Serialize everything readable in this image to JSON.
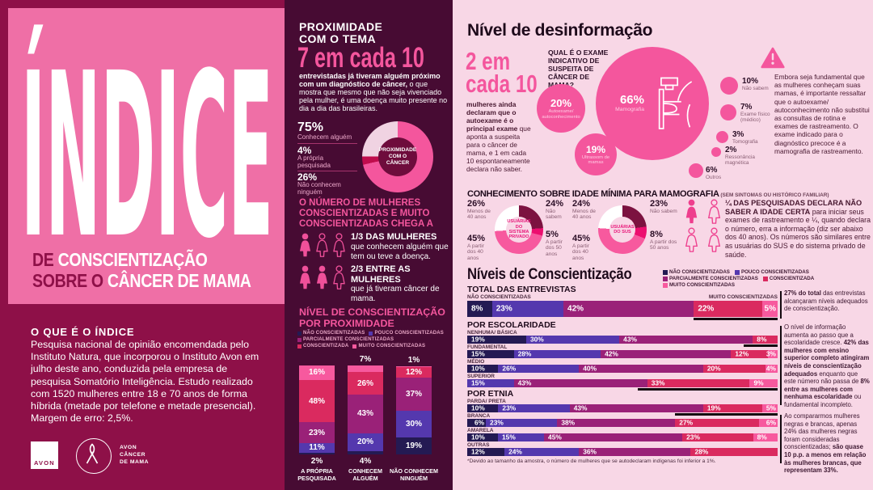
{
  "palette": {
    "left_bg": "#8E1048",
    "pink_box": "#EF6FA6",
    "mid_bg": "#470B33",
    "right_bg": "#F8D7E6",
    "accent_pink": "#F4569D",
    "navy": "#241A53",
    "purple": "#5438AE",
    "magenta": "#9A2178",
    "crimson": "#DA2A5F",
    "pink": "#F7599E",
    "pale_pink": "#F0D3E2",
    "deep_red": "#C00D4D",
    "donut_hole": "#6E0C3C",
    "slice_maroon": "#7C1240",
    "slice_magenta": "#EC0E6F",
    "marker_black": "#140A10"
  },
  "left": {
    "title": "ÍNDICE",
    "subtitle_line1_dark": "DE ",
    "subtitle_line1_white": "CONSCIENTIZAÇÃO",
    "subtitle_line2_dark": "SOBRE O ",
    "subtitle_line2_white": "CÂNCER DE MAMA",
    "about_heading": "O QUE É O ÍNDICE",
    "about_text": "Pesquisa nacional de opinião encomendada pelo Instituto Natura, que incorporou o Instituto Avon em julho deste ano, conduzida pela empresa de pesquisa Somatório Inteligência. Estudo realizado com 1520 mulheres entre 18 e 70 anos de forma híbrida (metade por telefone e metade presencial). Margem de erro: 2,5%.",
    "logo_avon": "AVON",
    "logo_ribbon_text": "AVON\nCÂNCER\nDE MAMA"
  },
  "middle": {
    "heading": "PROXIMIDADE\nCOM O TEMA",
    "big_number": "7 em cada 10",
    "lead": [
      {
        "t": "entrevistadas já tiveram alguém próximo com um diagnóstico de câncer,",
        "b": true
      },
      {
        "t": " o que mostra que mesmo que não seja vivenciado pela mulher, é uma doença muito presente no dia a dia das brasileiras.",
        "b": false
      }
    ],
    "women_heading": "O NÚMERO DE MULHERES CONSCIENTIZADAS E MUITO CONSCIENTIZADAS CHEGA A",
    "rows": [
      {
        "title": "1/3 DAS MULHERES",
        "text": "que conhecem alguém que tem ou teve a doença.",
        "icons": {
          "filled": 1,
          "total": 3
        }
      },
      {
        "title": "2/3 ENTRE AS MULHERES",
        "text": "que já tiveram câncer de mama.",
        "icons": {
          "filled": 2,
          "total": 3
        }
      }
    ],
    "chart_heading": "NÍVEL DE CONSCIENTIZAÇÃO POR PROXIMIDADE"
  },
  "right": {
    "heading": "Nível de desinformação",
    "big_number": "2 em\ncada 10",
    "intro": [
      {
        "t": "mulheres ainda declaram que o autoexame é o principal exame",
        "b": true
      },
      {
        "t": " que aponta a suspeita para o câncer de mama, e 1 em cada 10 espontaneamente declara não saber.",
        "b": false
      }
    ],
    "warning_text": "Embora seja fundamental que as mulheres conheçam suas mamas, é importante ressaltar que o autoexame/ autoconhecimento não substitui as consultas de rotina e exames de rastreamento. O exame indicado para o diagnóstico precoce é a mamografia de rastreamento.",
    "mammo_heading": "CONHECIMENTO SOBRE IDADE MÍNIMA PARA MAMOGRAFIA",
    "mammo_heading_suffix": " (SEM SINTOMAS OU HISTÓRICO FAMILIAR)",
    "quarter": {
      "icons": {
        "filled": 1,
        "total": 4
      },
      "text": [
        {
          "t": "¼ DAS PESQUISADAS DECLARA NÃO SABER A IDADE CERTA",
          "b": true
        },
        {
          "t": " para iniciar seus exames de rastreamento e ¼, quando declara o número, erra a informação (diz ser abaixo dos 40 anos). Os números são similares entre as usuárias do SUS e do sistema privado de saúde.",
          "b": false
        }
      ]
    }
  },
  "chart_data": [
    {
      "id": "proximity-donut",
      "type": "pie",
      "title": "PROXIMIDADE COM O CÂNCER",
      "slices": [
        {
          "label": "Conhecem alguém",
          "pct": "75%",
          "value": 75,
          "color": "#F4569D"
        },
        {
          "label": "A própria pesquisada",
          "pct": "4%",
          "value": 4,
          "color": "#C00D4D"
        },
        {
          "label": "Não conhecem ninguém",
          "pct": "26%",
          "value": 26,
          "color": "#F0D3E2"
        }
      ]
    },
    {
      "id": "awareness-by-proximity",
      "type": "bar",
      "stacked": true,
      "unit": "%",
      "title": "NÍVEL DE CONSCIENTIZAÇÃO POR PROXIMIDADE",
      "categories": [
        "A PRÓPRIA\nPESQUISADA",
        "CONHECEM\nALGUÉM",
        "NÃO CONHECEM\nNINGUÉM"
      ],
      "series": [
        {
          "name": "NÃO CONSCIENTIZADAS",
          "color": "#241A53",
          "values": [
            2,
            4,
            19
          ]
        },
        {
          "name": "POUCO CONSCIENTIZADAS",
          "color": "#5438AE",
          "values": [
            11,
            20,
            30
          ]
        },
        {
          "name": "PARCIALMENTE CONSCIENTIZADAS",
          "color": "#9A2178",
          "values": [
            23,
            43,
            37
          ]
        },
        {
          "name": "CONSCIENTIZADA",
          "color": "#DA2A5F",
          "values": [
            48,
            26,
            12
          ]
        },
        {
          "name": "MUITO CONSCIENTIZADAS",
          "color": "#F7599E",
          "values": [
            16,
            7,
            1
          ]
        }
      ]
    },
    {
      "id": "exam-bubbles",
      "type": "bubble",
      "question": "QUAL É O EXAME INDICATIVO DE SUSPEITA DE CÂNCER DE MAMA?",
      "items": [
        {
          "label": "Mamografia",
          "pct": "66%",
          "value": 66
        },
        {
          "label": "Autoexame/ autoconhecimento",
          "pct": "20%",
          "value": 20
        },
        {
          "label": "Ultrassom de mamas",
          "pct": "19%",
          "value": 19
        },
        {
          "label": "Não sabem",
          "pct": "10%",
          "value": 10
        },
        {
          "label": "Exame físico (médico)",
          "pct": "7%",
          "value": 7
        },
        {
          "label": "Tomografia",
          "pct": "3%",
          "value": 3
        },
        {
          "label": "Ressonância magnética",
          "pct": "2%",
          "value": 2
        },
        {
          "label": "Outros",
          "pct": "6%",
          "value": 6
        }
      ]
    },
    {
      "id": "mammography-age-private",
      "type": "pie",
      "title": "USUÁRIAS DO SISTEMA PRIVADO",
      "slices": [
        {
          "label": "Não sabem",
          "pct": "24%",
          "value": 24,
          "color": "#7C1240"
        },
        {
          "label": "A partir dos 50 anos",
          "pct": "5%",
          "value": 5,
          "color": "#EC0E6F"
        },
        {
          "label": "A partir dos 40 anos",
          "pct": "45%",
          "value": 45,
          "color": "#F7599E"
        },
        {
          "label": "Menos de 40 anos",
          "pct": "26%",
          "value": 26,
          "color": "#FFFFFF"
        }
      ]
    },
    {
      "id": "mammography-age-sus",
      "type": "pie",
      "title": "USUÁRIAS DO SUS",
      "slices": [
        {
          "label": "Não sabem",
          "pct": "23%",
          "value": 23,
          "color": "#7C1240"
        },
        {
          "label": "A partir dos 50 anos",
          "pct": "8%",
          "value": 8,
          "color": "#EC0E6F"
        },
        {
          "label": "A partir dos 40 anos",
          "pct": "45%",
          "value": 45,
          "color": "#F7599E"
        },
        {
          "label": "Menos de 40 anos",
          "pct": "24%",
          "value": 24,
          "color": "#FFFFFF"
        }
      ]
    },
    {
      "id": "awareness-levels",
      "type": "bar",
      "stacked": true,
      "horizontal": true,
      "title": "Níveis de Conscientização",
      "colors": {
        "navy": "#241A53",
        "purple": "#5438AE",
        "magenta": "#9A2178",
        "crimson": "#DA2A5F",
        "pink": "#F7599E"
      },
      "legend": [
        "NÃO CONSCIENTIZADAS",
        "POUCO CONSCIENTIZADAS",
        "PARCIALMENTE CONSCIENTIZADAS",
        "CONSCIENTIZADA",
        "MUITO CONSCIENTIZADAS"
      ],
      "groups": [
        {
          "heading": "TOTAL DAS ENTREVISTAS",
          "rows": [
            {
              "label": "TOTAL",
              "left_label": "NÃO CONSCIENTIZADAS",
              "right_label": "MUITO CONSCIENTIZADAS",
              "big": true,
              "segments": [
                [
                  "navy",
                  8
                ],
                [
                  "purple",
                  23
                ],
                [
                  "magenta",
                  42
                ],
                [
                  "crimson",
                  22
                ],
                [
                  "pink",
                  5
                ]
              ],
              "marker": [
                73,
                100
              ]
            }
          ]
        },
        {
          "heading": "POR ESCOLARIDADE",
          "rows": [
            {
              "label": "NENHUMA/ BÁSICA",
              "segments": [
                [
                  "navy",
                  19
                ],
                [
                  "purple",
                  30
                ],
                [
                  "magenta",
                  43
                ],
                [
                  "crimson",
                  8
                ]
              ],
              "marker": [
                89,
                100
              ]
            },
            {
              "label": "FUNDAMENTAL",
              "segments": [
                [
                  "navy",
                  15
                ],
                [
                  "purple",
                  28
                ],
                [
                  "magenta",
                  42
                ],
                [
                  "crimson",
                  12
                ],
                [
                  "pink",
                  3
                ]
              ]
            },
            {
              "label": "MÉDIO",
              "segments": [
                [
                  "navy",
                  10
                ],
                [
                  "purple",
                  26
                ],
                [
                  "magenta",
                  40
                ],
                [
                  "crimson",
                  20
                ],
                [
                  "pink",
                  4
                ]
              ]
            },
            {
              "label": "SUPERIOR",
              "segments": [
                [
                  "purple",
                  15
                ],
                [
                  "magenta",
                  43
                ],
                [
                  "crimson",
                  33
                ],
                [
                  "pink",
                  9
                ]
              ],
              "marker": [
                55,
                100
              ]
            }
          ]
        },
        {
          "heading": "POR ETNIA",
          "rows": [
            {
              "label": "PARDA/ PRETA",
              "segments": [
                [
                  "navy",
                  10
                ],
                [
                  "purple",
                  23
                ],
                [
                  "magenta",
                  43
                ],
                [
                  "crimson",
                  19
                ],
                [
                  "pink",
                  5
                ]
              ],
              "marker": [
                67,
                100
              ]
            },
            {
              "label": "BRANCA",
              "segments": [
                [
                  "navy",
                  6
                ],
                [
                  "purple",
                  23
                ],
                [
                  "magenta",
                  38
                ],
                [
                  "crimson",
                  27
                ],
                [
                  "pink",
                  6
                ]
              ]
            },
            {
              "label": "AMARELA",
              "segments": [
                [
                  "navy",
                  10
                ],
                [
                  "purple",
                  15
                ],
                [
                  "magenta",
                  45
                ],
                [
                  "crimson",
                  23
                ],
                [
                  "pink",
                  8
                ]
              ]
            },
            {
              "label": "OUTRAS",
              "segments": [
                [
                  "navy",
                  12
                ],
                [
                  "purple",
                  24
                ],
                [
                  "magenta",
                  36
                ],
                [
                  "crimson",
                  28
                ]
              ]
            }
          ]
        }
      ],
      "footnote": "*Devido ao tamanho da amostra, o número de mulheres que se autodeclaram indígenas foi inferior a 1%.",
      "notes": [
        {
          "segments": [
            {
              "t": "27% do total",
              "b": true
            },
            {
              "t": " das entrevistas alcançaram níveis adequados de conscientização.",
              "b": false
            }
          ]
        },
        {
          "segments": [
            {
              "t": "O nível de informação aumenta ao passo que a escolaridade cresce. ",
              "b": false
            },
            {
              "t": "42% das mulheres com ensino superior completo atingiram níveis de conscientização adequados",
              "b": true
            },
            {
              "t": " enquanto que este número não passa de ",
              "b": false
            },
            {
              "t": "8% entre as mulheres com nenhuma escolaridade",
              "b": true
            },
            {
              "t": " ou fundamental incompleto.",
              "b": false
            }
          ]
        },
        {
          "segments": [
            {
              "t": "Ao compararmos mulheres negras e brancas, apenas 24% das mulheres negras foram consideradas conscientizadas; ",
              "b": false
            },
            {
              "t": "são quase 10 p.p. a menos em relação às mulheres brancas, que representam 33%.",
              "b": true
            }
          ]
        }
      ]
    }
  ]
}
